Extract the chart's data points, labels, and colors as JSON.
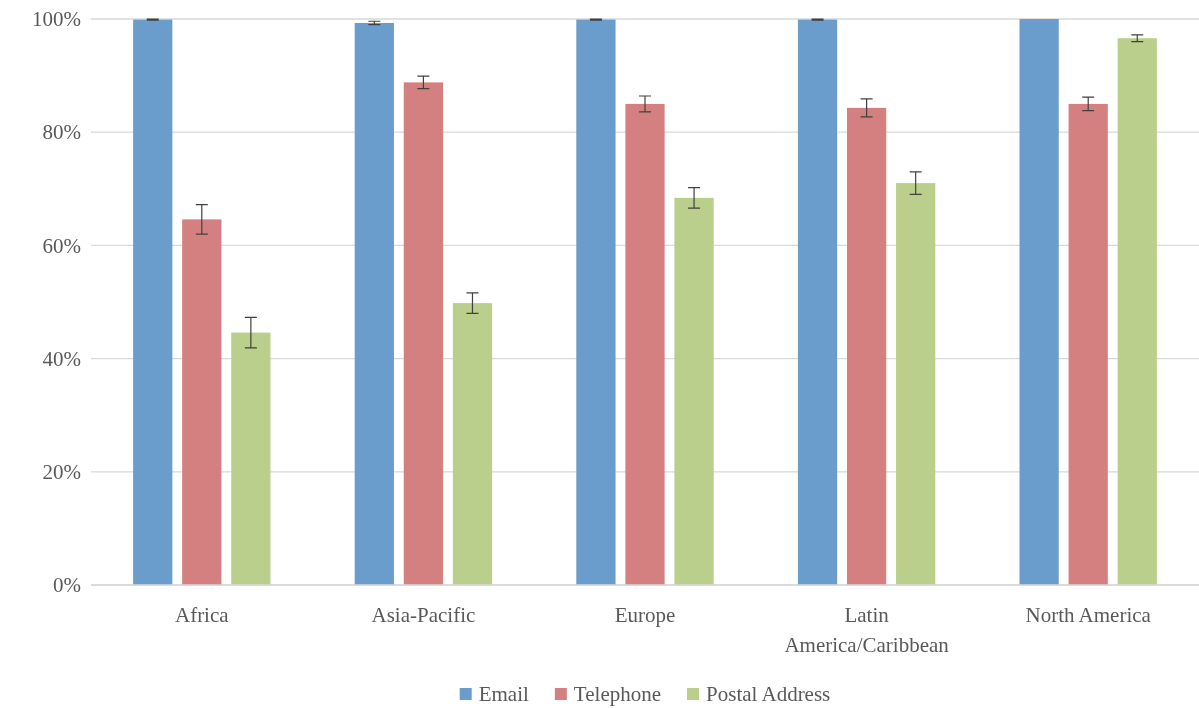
{
  "chart_data": {
    "type": "bar",
    "categories": [
      "Africa",
      "Asia-Pacific",
      "Europe",
      "Latin America/Caribbean",
      "North America"
    ],
    "series": [
      {
        "name": "Email",
        "color": "#6b9dcc",
        "values": [
          99.9,
          99.3,
          99.9,
          99.9,
          100
        ],
        "errors": [
          0.1,
          0.3,
          0.1,
          0.1,
          null
        ]
      },
      {
        "name": "Telephone",
        "color": "#d48080",
        "values": [
          64.6,
          88.8,
          85.0,
          84.3,
          85.0
        ],
        "errors": [
          2.6,
          1.1,
          1.4,
          1.6,
          1.2
        ]
      },
      {
        "name": "Postal Address",
        "color": "#bacf8b",
        "values": [
          44.6,
          49.8,
          68.4,
          71.0,
          96.6
        ],
        "errors": [
          2.7,
          1.8,
          1.8,
          2.0,
          0.6
        ]
      }
    ],
    "ylim": [
      0,
      100
    ],
    "yticks": [
      {
        "value": 0,
        "label": "0%"
      },
      {
        "value": 20,
        "label": "20%"
      },
      {
        "value": 40,
        "label": "40%"
      },
      {
        "value": 60,
        "label": "60%"
      },
      {
        "value": 80,
        "label": "80%"
      },
      {
        "value": 100,
        "label": "100%"
      }
    ],
    "grid": "y",
    "legend": "bottom"
  }
}
